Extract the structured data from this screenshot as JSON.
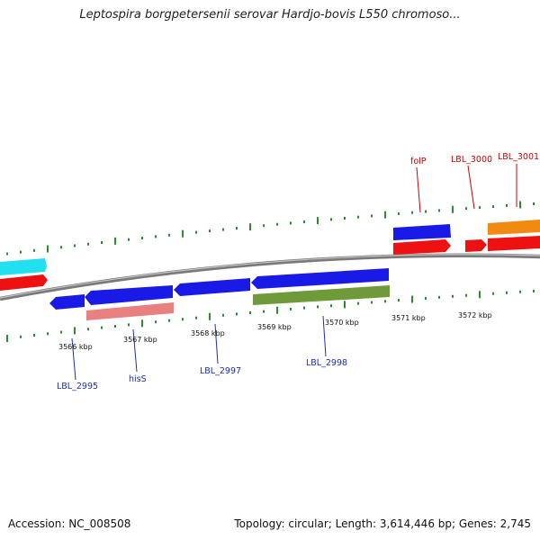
{
  "title": "Leptospira borgpetersenii serovar Hardjo-bovis L550 chromoso...",
  "footer": {
    "accession": "Accession: NC_008508",
    "topology": "Topology: circular; Length: 3,614,446 bp; Genes: 2,745"
  },
  "colors": {
    "backbone": "#8c8c8c",
    "ticks": "#2f8a2f",
    "forward_label": "#cc0000",
    "reverse_label": "#1a2fb0",
    "blue": "#1a1ae6",
    "red": "#ee1111",
    "cyan": "#22e0f0",
    "orange": "#f08a10",
    "salmon": "#e88080",
    "olive": "#6e9a3a"
  },
  "kbp_labels": [
    "3566 kbp",
    "3567 kbp",
    "3568 kbp",
    "3569 kbp",
    "3570 kbp",
    "3571 kbp",
    "3572 kbp"
  ],
  "forward_gene_labels": [
    "folP",
    "LBL_3000",
    "LBL_3001"
  ],
  "reverse_gene_labels": [
    "LBL_2995",
    "hisS",
    "LBL_2997",
    "LBL_2998"
  ]
}
